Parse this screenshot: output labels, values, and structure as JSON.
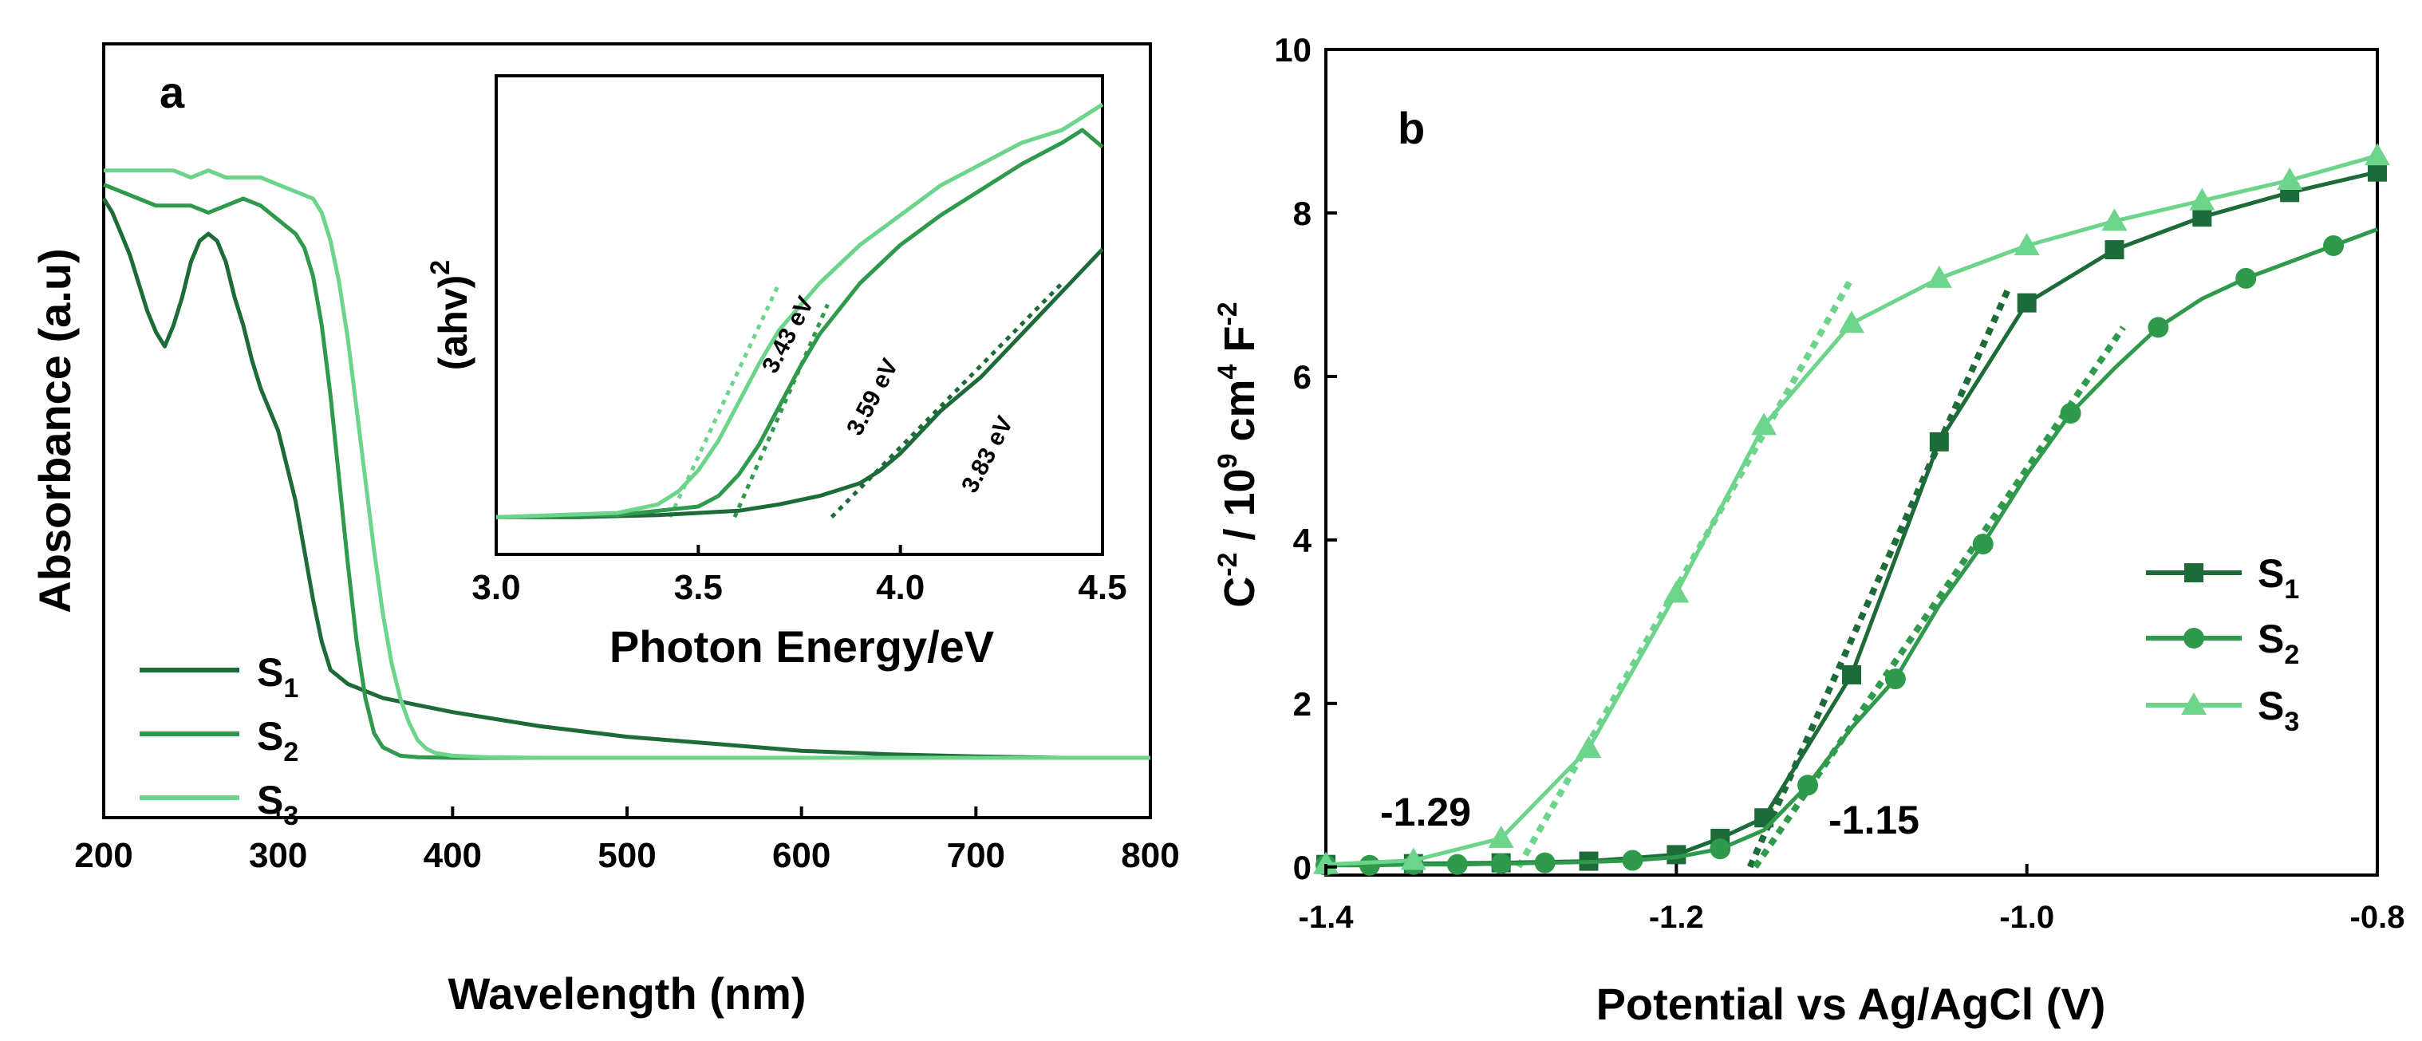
{
  "colors": {
    "s1": "#1e6b3a",
    "s2": "#2f9a4c",
    "s3": "#6dd48b",
    "axis": "#000000"
  },
  "chart_data": [
    {
      "panel": "a",
      "type": "line",
      "xlabel": "Wavelength (nm)",
      "ylabel": "Absorbance (a.u)",
      "xlim": [
        200,
        800
      ],
      "ylim": [
        0,
        1.1
      ],
      "xticks": [
        "200",
        "300",
        "400",
        "500",
        "600",
        "700",
        "800"
      ],
      "legend": {
        "placement": "bottom-left",
        "entries": [
          "S1",
          "S2",
          "S3"
        ]
      },
      "series": [
        {
          "name": "S1",
          "color_key": "s1",
          "x": [
            200,
            205,
            210,
            215,
            220,
            225,
            230,
            235,
            240,
            245,
            250,
            255,
            260,
            265,
            270,
            275,
            280,
            285,
            290,
            295,
            300,
            305,
            310,
            315,
            320,
            325,
            330,
            340,
            360,
            380,
            400,
            450,
            500,
            550,
            600,
            650,
            700,
            750,
            800
          ],
          "y": [
            0.88,
            0.86,
            0.83,
            0.8,
            0.76,
            0.72,
            0.69,
            0.67,
            0.7,
            0.74,
            0.79,
            0.82,
            0.83,
            0.82,
            0.79,
            0.74,
            0.7,
            0.65,
            0.61,
            0.58,
            0.55,
            0.5,
            0.45,
            0.38,
            0.31,
            0.25,
            0.21,
            0.19,
            0.17,
            0.16,
            0.15,
            0.13,
            0.115,
            0.105,
            0.095,
            0.09,
            0.087,
            0.085,
            0.085
          ]
        },
        {
          "name": "S2",
          "color_key": "s2",
          "x": [
            200,
            210,
            220,
            230,
            240,
            250,
            260,
            270,
            280,
            290,
            300,
            305,
            310,
            315,
            320,
            325,
            330,
            335,
            340,
            345,
            350,
            355,
            360,
            370,
            380,
            400,
            450,
            500,
            600,
            700,
            800
          ],
          "y": [
            0.9,
            0.89,
            0.88,
            0.87,
            0.87,
            0.87,
            0.86,
            0.87,
            0.88,
            0.87,
            0.85,
            0.84,
            0.83,
            0.81,
            0.77,
            0.7,
            0.6,
            0.48,
            0.36,
            0.25,
            0.17,
            0.12,
            0.1,
            0.088,
            0.086,
            0.085,
            0.085,
            0.085,
            0.085,
            0.085,
            0.085
          ]
        },
        {
          "name": "S3",
          "color_key": "s3",
          "x": [
            200,
            210,
            220,
            230,
            240,
            250,
            260,
            270,
            280,
            290,
            300,
            310,
            320,
            325,
            330,
            335,
            340,
            345,
            350,
            355,
            360,
            365,
            370,
            375,
            380,
            385,
            390,
            400,
            420,
            450,
            500,
            600,
            700,
            800
          ],
          "y": [
            0.92,
            0.92,
            0.92,
            0.92,
            0.92,
            0.91,
            0.92,
            0.91,
            0.91,
            0.91,
            0.9,
            0.89,
            0.88,
            0.86,
            0.82,
            0.76,
            0.68,
            0.58,
            0.48,
            0.38,
            0.29,
            0.22,
            0.17,
            0.135,
            0.11,
            0.098,
            0.092,
            0.088,
            0.086,
            0.085,
            0.085,
            0.085,
            0.085,
            0.085
          ]
        }
      ]
    },
    {
      "panel": "a-inset",
      "type": "line",
      "xlabel": "Photon Energy/eV",
      "ylabel": "(ahv)2",
      "xlim": [
        3.0,
        4.5
      ],
      "ylim": [
        0,
        1.0
      ],
      "xticks": [
        "3.0",
        "3.5",
        "4.0",
        "4.5"
      ],
      "annotations": [
        "3.43 eV",
        "3.59 eV",
        "3.83 eV"
      ],
      "series": [
        {
          "name": "S1",
          "color_key": "s1",
          "x": [
            3.0,
            3.2,
            3.4,
            3.6,
            3.7,
            3.8,
            3.9,
            3.95,
            4.0,
            4.05,
            4.1,
            4.2,
            4.3,
            4.4,
            4.5
          ],
          "y": [
            0.0,
            0.0,
            0.005,
            0.015,
            0.03,
            0.05,
            0.08,
            0.11,
            0.15,
            0.2,
            0.25,
            0.33,
            0.43,
            0.53,
            0.63
          ]
        },
        {
          "name": "S2",
          "color_key": "s2",
          "x": [
            3.0,
            3.3,
            3.5,
            3.55,
            3.6,
            3.65,
            3.7,
            3.75,
            3.8,
            3.9,
            4.0,
            4.1,
            4.2,
            4.3,
            4.4,
            4.45,
            4.5
          ],
          "y": [
            0.0,
            0.005,
            0.025,
            0.05,
            0.1,
            0.17,
            0.26,
            0.35,
            0.43,
            0.55,
            0.64,
            0.71,
            0.77,
            0.83,
            0.88,
            0.91,
            0.87
          ]
        },
        {
          "name": "S3",
          "color_key": "s3",
          "x": [
            3.0,
            3.3,
            3.4,
            3.45,
            3.5,
            3.55,
            3.6,
            3.65,
            3.7,
            3.8,
            3.9,
            4.0,
            4.1,
            4.2,
            4.3,
            4.4,
            4.5
          ],
          "y": [
            0.0,
            0.01,
            0.03,
            0.06,
            0.11,
            0.18,
            0.27,
            0.36,
            0.44,
            0.55,
            0.64,
            0.71,
            0.78,
            0.83,
            0.88,
            0.91,
            0.97
          ]
        }
      ],
      "tangent_lines": [
        {
          "name": "S1 fit",
          "color_key": "s1",
          "x": [
            3.83,
            4.4
          ],
          "y": [
            0.0,
            0.55
          ]
        },
        {
          "name": "S2 fit",
          "color_key": "s2",
          "x": [
            3.59,
            3.82
          ],
          "y": [
            0.0,
            0.5
          ]
        },
        {
          "name": "S3 fit",
          "color_key": "s3",
          "x": [
            3.43,
            3.7
          ],
          "y": [
            0.0,
            0.55
          ]
        }
      ]
    },
    {
      "panel": "b",
      "type": "line",
      "xlabel": "Potential vs Ag/AgCl (V)",
      "ylabel_main": "C",
      "ylabel_sup1": "-2",
      "ylabel_mid": " / 10",
      "ylabel_sup2": "9",
      "ylabel_mid2": " cm",
      "ylabel_sup3": "4",
      "ylabel_end": " F",
      "ylabel_sup4": "-2",
      "xlim": [
        -1.4,
        -0.8
      ],
      "ylim": [
        0,
        10
      ],
      "xticks": [
        "-1.4",
        "-1.2",
        "-1.0",
        "-0.8"
      ],
      "yticks": [
        "0",
        "2",
        "4",
        "6",
        "8",
        "10"
      ],
      "legend": {
        "placement": "right",
        "entries": [
          "S1",
          "S2",
          "S3"
        ]
      },
      "annotations": [
        "-1.29",
        "-1.15"
      ],
      "series": [
        {
          "name": "S1",
          "color_key": "s1",
          "marker": "square",
          "x": [
            -1.4,
            -1.35,
            -1.3,
            -1.25,
            -1.2,
            -1.175,
            -1.15,
            -1.1,
            -1.05,
            -1.0,
            -0.95,
            -0.9,
            -0.85,
            -0.8
          ],
          "y": [
            0.03,
            0.04,
            0.05,
            0.07,
            0.15,
            0.35,
            0.6,
            2.35,
            5.2,
            6.9,
            7.55,
            7.95,
            8.25,
            8.5
          ]
        },
        {
          "name": "S2",
          "color_key": "s2",
          "marker": "circle",
          "x": [
            -1.4,
            -1.375,
            -1.35,
            -1.325,
            -1.3,
            -1.275,
            -1.25,
            -1.225,
            -1.2,
            -1.175,
            -1.15,
            -1.125,
            -1.1,
            -1.075,
            -1.05,
            -1.025,
            -1.0,
            -0.975,
            -0.95,
            -0.925,
            -0.9,
            -0.875,
            -0.85,
            -0.825,
            -0.8
          ],
          "y": [
            0.02,
            0.02,
            0.03,
            0.03,
            0.04,
            0.05,
            0.06,
            0.08,
            0.12,
            0.22,
            0.45,
            1.0,
            1.7,
            2.3,
            3.2,
            3.95,
            4.8,
            5.55,
            6.1,
            6.6,
            6.95,
            7.2,
            7.4,
            7.6,
            7.8
          ]
        },
        {
          "name": "S3",
          "color_key": "s3",
          "marker": "triangle",
          "x": [
            -1.4,
            -1.35,
            -1.3,
            -1.25,
            -1.2,
            -1.15,
            -1.1,
            -1.05,
            -1.0,
            -0.95,
            -0.9,
            -0.85,
            -0.8
          ],
          "y": [
            0.03,
            0.08,
            0.35,
            1.45,
            3.35,
            5.4,
            6.65,
            7.2,
            7.6,
            7.9,
            8.15,
            8.4,
            8.7
          ]
        }
      ],
      "marker_x": {
        "S2": [
          -1.4,
          -1.375,
          -1.35,
          -1.325,
          -1.3,
          -1.275,
          -1.225,
          -1.175,
          -1.125,
          -1.075,
          -1.025,
          -0.975,
          -0.925,
          -0.875,
          -0.825
        ]
      },
      "tangent_lines": [
        {
          "name": "S1 fit",
          "color_key": "s1",
          "x": [
            -1.158,
            -1.01
          ],
          "y": [
            0.0,
            7.1
          ]
        },
        {
          "name": "S2 fit",
          "color_key": "s2",
          "x": [
            -1.155,
            -0.945
          ],
          "y": [
            0.0,
            6.6
          ]
        },
        {
          "name": "S3 fit",
          "color_key": "s3",
          "x": [
            -1.29,
            -1.1
          ],
          "y": [
            0.0,
            7.2
          ]
        }
      ]
    }
  ],
  "labels": {
    "panel_a": "a",
    "panel_b": "b",
    "legend_s": "S",
    "legend_sub": [
      "1",
      "2",
      "3"
    ],
    "inset_ylabel": "(ahv)",
    "inset_ylabel_sup": "2",
    "ann_a": [
      "3.43 eV",
      "3.59 eV",
      "3.83 eV"
    ],
    "ann_b1": "-1.29",
    "ann_b2": "-1.15"
  }
}
